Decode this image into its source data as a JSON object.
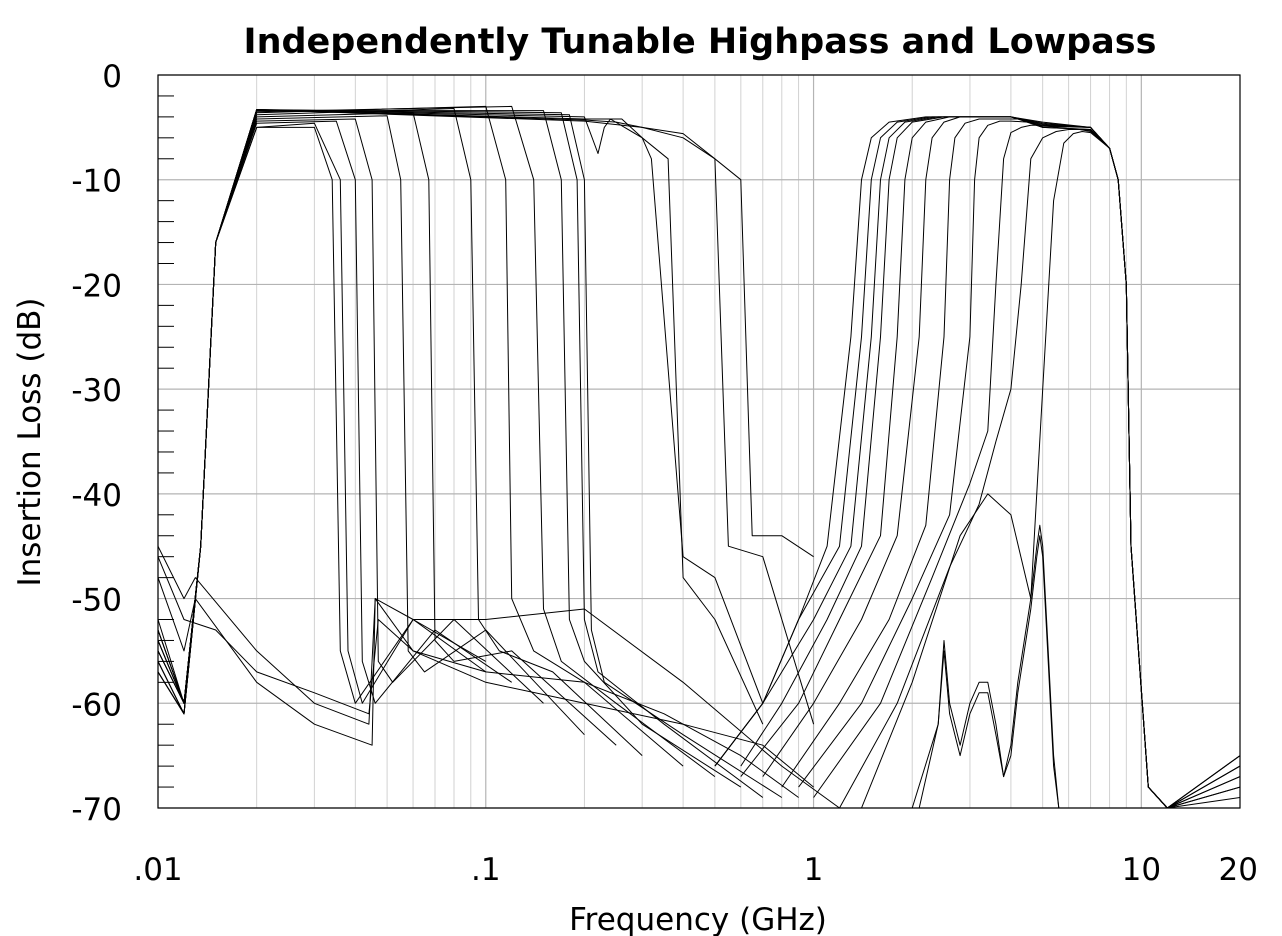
{
  "chart_data": {
    "type": "line",
    "title": "Independently Tunable Highpass and Lowpass",
    "xlabel": "Frequency (GHz)",
    "ylabel": "Insertion Loss (dB)",
    "xscale": "log",
    "xlim": [
      0.01,
      20
    ],
    "ylim": [
      -70,
      0
    ],
    "grid": true,
    "legend": "none",
    "x_ticks": [
      {
        "value": 0.01,
        "label": ".01"
      },
      {
        "value": 0.1,
        "label": ".1"
      },
      {
        "value": 1,
        "label": "1"
      },
      {
        "value": 10,
        "label": "10"
      },
      {
        "value": 20,
        "label": "20"
      }
    ],
    "y_ticks": [
      {
        "value": 0,
        "label": "0"
      },
      {
        "value": -10,
        "label": "-10"
      },
      {
        "value": -20,
        "label": "-20"
      },
      {
        "value": -30,
        "label": "-30"
      },
      {
        "value": -40,
        "label": "-40"
      },
      {
        "value": -50,
        "label": "-50"
      },
      {
        "value": -60,
        "label": "-60"
      },
      {
        "value": -70,
        "label": "-70"
      }
    ],
    "line_color": "#000000",
    "series": [
      {
        "x": [
          0.01,
          0.012,
          0.0135,
          0.015,
          0.02,
          0.03,
          0.034,
          0.036,
          0.04,
          0.06,
          0.1
        ],
        "values": [
          -57,
          -61,
          -45,
          -16,
          -5,
          -5,
          -10,
          -55,
          -60,
          -52,
          -56
        ]
      },
      {
        "x": [
          0.01,
          0.012,
          0.0135,
          0.015,
          0.02,
          0.03,
          0.036,
          0.038,
          0.042,
          0.06,
          0.1
        ],
        "values": [
          -57,
          -61,
          -45,
          -16,
          -5,
          -4.6,
          -10,
          -55,
          -60,
          -52,
          -57
        ]
      },
      {
        "x": [
          0.01,
          0.012,
          0.0135,
          0.015,
          0.02,
          0.035,
          0.04,
          0.042,
          0.046,
          0.07,
          0.12
        ],
        "values": [
          -57,
          -61,
          -45,
          -16,
          -4.6,
          -4.4,
          -10,
          -56,
          -60,
          -53,
          -58
        ]
      },
      {
        "x": [
          0.01,
          0.012,
          0.0135,
          0.015,
          0.02,
          0.04,
          0.045,
          0.047,
          0.052,
          0.08,
          0.15
        ],
        "values": [
          -56,
          -61,
          -45,
          -16,
          -4.4,
          -4.2,
          -10,
          -56,
          -58,
          -52,
          -60
        ]
      },
      {
        "x": [
          0.01,
          0.012,
          0.0135,
          0.015,
          0.02,
          0.05,
          0.055,
          0.058,
          0.065,
          0.1,
          0.2
        ],
        "values": [
          -56,
          -61,
          -45,
          -16,
          -4.2,
          -3.9,
          -10,
          -55,
          -57,
          -53,
          -63
        ]
      },
      {
        "x": [
          0.01,
          0.012,
          0.0135,
          0.015,
          0.02,
          0.06,
          0.067,
          0.07,
          0.08,
          0.12,
          0.25
        ],
        "values": [
          -56,
          -61,
          -45,
          -16,
          -4.0,
          -3.6,
          -10,
          -54,
          -56,
          -55,
          -64
        ]
      },
      {
        "x": [
          0.01,
          0.012,
          0.0135,
          0.015,
          0.02,
          0.08,
          0.09,
          0.095,
          0.11,
          0.16,
          0.3
        ],
        "values": [
          -55,
          -60,
          -45,
          -16,
          -3.8,
          -3.2,
          -10,
          -52,
          -55,
          -57,
          -65
        ]
      },
      {
        "x": [
          0.01,
          0.012,
          0.0135,
          0.015,
          0.02,
          0.1,
          0.115,
          0.12,
          0.14,
          0.2,
          0.4
        ],
        "values": [
          -55,
          -60,
          -45,
          -16,
          -3.6,
          -3.0,
          -10,
          -50,
          -55,
          -58,
          -66
        ]
      },
      {
        "x": [
          0.01,
          0.012,
          0.0135,
          0.015,
          0.02,
          0.12,
          0.14,
          0.15,
          0.17,
          0.25,
          0.5
        ],
        "values": [
          -55,
          -60,
          -45,
          -16,
          -3.5,
          -3.0,
          -10,
          -51,
          -56,
          -60,
          -67
        ]
      },
      {
        "x": [
          0.01,
          0.012,
          0.0135,
          0.015,
          0.02,
          0.15,
          0.17,
          0.18,
          0.2,
          0.3,
          0.6
        ],
        "values": [
          -54,
          -60,
          -45,
          -16,
          -3.4,
          -3.4,
          -10,
          -52,
          -56,
          -62,
          -68
        ]
      },
      {
        "x": [
          0.01,
          0.012,
          0.0135,
          0.015,
          0.02,
          0.17,
          0.19,
          0.2,
          0.22,
          0.35,
          0.7
        ],
        "values": [
          -54,
          -60,
          -45,
          -16,
          -3.3,
          -3.6,
          -10,
          -52,
          -57,
          -62,
          -69
        ]
      },
      {
        "x": [
          0.01,
          0.012,
          0.0135,
          0.015,
          0.02,
          0.18,
          0.2,
          0.21,
          0.23,
          0.4,
          0.8
        ],
        "values": [
          -54,
          -60,
          -45,
          -16,
          -3.3,
          -3.8,
          -10,
          -53,
          -58,
          -63,
          -69
        ]
      },
      {
        "x": [
          0.01,
          0.012,
          0.0135,
          0.015,
          0.02,
          0.2,
          0.22,
          0.23,
          0.24,
          0.3,
          0.32,
          0.4,
          0.5,
          0.7
        ],
        "values": [
          -53,
          -60,
          -45,
          -16,
          -3.3,
          -4.0,
          -7.5,
          -5,
          -4.2,
          -6,
          -8,
          -46,
          -48,
          -60
        ]
      },
      {
        "x": [
          0.01,
          0.012,
          0.0135,
          0.015,
          0.02,
          0.2,
          0.23,
          0.26,
          0.3,
          0.36,
          0.4,
          0.5,
          0.7
        ],
        "values": [
          -53,
          -60,
          -45,
          -16,
          -3.3,
          -4.2,
          -4.2,
          -4.2,
          -6,
          -8,
          -48,
          -52,
          -62
        ]
      },
      {
        "x": [
          0.01,
          0.012,
          0.0135,
          0.015,
          0.02,
          0.2,
          0.25,
          0.3,
          0.4,
          0.5,
          0.55,
          0.7,
          1.0
        ],
        "values": [
          -53,
          -60,
          -45,
          -16,
          -3.3,
          -4.3,
          -4.5,
          -5,
          -6,
          -8,
          -45,
          -46,
          -62
        ]
      },
      {
        "x": [
          0.01,
          0.012,
          0.0135,
          0.015,
          0.02,
          0.2,
          0.3,
          0.4,
          0.5,
          0.6,
          0.65,
          0.8,
          1.0
        ],
        "values": [
          -52,
          -60,
          -45,
          -16,
          -3.3,
          -4.4,
          -5,
          -5.6,
          -8,
          -10,
          -44,
          -44,
          -46
        ]
      },
      {
        "x": [
          0.5,
          0.7,
          0.9,
          1.1,
          1.3,
          1.4,
          1.5,
          1.7,
          2.2,
          3.0,
          4.0,
          5.0,
          7.0,
          8.0,
          8.5,
          9.0,
          9.3,
          10.5,
          12,
          20
        ],
        "values": [
          -66,
          -60,
          -52,
          -45,
          -25,
          -10,
          -6,
          -4.5,
          -4,
          -4,
          -4,
          -4.5,
          -5,
          -7,
          -10,
          -20,
          -45,
          -68,
          -70,
          -65
        ]
      },
      {
        "x": [
          0.5,
          0.7,
          0.9,
          1.2,
          1.4,
          1.5,
          1.6,
          1.8,
          2.3,
          3.0,
          4.0,
          5.0,
          7.0,
          8.0,
          8.5,
          9.0,
          9.3,
          10.5,
          12,
          20
        ],
        "values": [
          -66,
          -60,
          -52,
          -45,
          -25,
          -10,
          -6,
          -4.5,
          -4,
          -4,
          -4,
          -4.6,
          -5,
          -7,
          -10,
          -20,
          -45,
          -68,
          -70,
          -65
        ]
      },
      {
        "x": [
          0.5,
          0.7,
          1.0,
          1.3,
          1.5,
          1.6,
          1.7,
          1.9,
          2.4,
          3.0,
          4.0,
          5.0,
          7.0,
          8.0,
          8.5,
          9.0,
          9.3,
          10.5,
          12,
          20
        ],
        "values": [
          -66,
          -60,
          -52,
          -45,
          -25,
          -10,
          -6,
          -4.5,
          -4,
          -4,
          -4,
          -4.7,
          -5,
          -7,
          -10,
          -20,
          -45,
          -68,
          -70,
          -65
        ]
      },
      {
        "x": [
          0.6,
          0.8,
          1.1,
          1.4,
          1.6,
          1.7,
          1.8,
          2.0,
          2.5,
          3.0,
          4.0,
          5.0,
          7.0,
          8.0,
          8.5,
          9.0,
          9.3,
          10.5,
          12,
          20
        ],
        "values": [
          -66,
          -60,
          -52,
          -45,
          -25,
          -10,
          -6,
          -4.5,
          -4,
          -4,
          -4,
          -4.8,
          -5,
          -7,
          -10,
          -20,
          -45,
          -68,
          -70,
          -66
        ]
      },
      {
        "x": [
          0.6,
          0.9,
          1.2,
          1.6,
          1.8,
          1.9,
          2.0,
          2.2,
          2.6,
          3.0,
          4.0,
          5.0,
          7.0,
          8.0,
          8.5,
          9.0,
          9.3,
          10.5,
          12,
          20
        ],
        "values": [
          -67,
          -60,
          -52,
          -44,
          -25,
          -10,
          -6,
          -4.5,
          -4,
          -4,
          -4,
          -4.8,
          -5,
          -7,
          -10,
          -20,
          -45,
          -68,
          -70,
          -66
        ]
      },
      {
        "x": [
          0.7,
          1.0,
          1.4,
          1.8,
          2.1,
          2.2,
          2.3,
          2.5,
          2.8,
          3.2,
          4.0,
          5.0,
          7.0,
          8.0,
          8.5,
          9.0,
          9.3,
          10.5,
          12,
          20
        ],
        "values": [
          -67,
          -60,
          -52,
          -44,
          -25,
          -10,
          -6,
          -4.5,
          -4,
          -4,
          -4,
          -4.9,
          -5,
          -7,
          -10,
          -20,
          -45,
          -68,
          -70,
          -66
        ]
      },
      {
        "x": [
          0.8,
          1.2,
          1.7,
          2.2,
          2.5,
          2.6,
          2.7,
          2.9,
          3.2,
          3.6,
          4.2,
          5.0,
          7.0,
          8.0,
          8.5,
          9.0,
          9.3,
          10.5,
          12,
          20
        ],
        "values": [
          -68,
          -60,
          -52,
          -43,
          -25,
          -10,
          -6,
          -4.6,
          -4.2,
          -4.2,
          -4.2,
          -5,
          -5.2,
          -7,
          -10,
          -20,
          -45,
          -68,
          -70,
          -67
        ]
      },
      {
        "x": [
          0.9,
          1.4,
          2.0,
          2.6,
          3.0,
          3.1,
          3.2,
          3.4,
          3.7,
          4.0,
          4.5,
          5.0,
          7.0,
          8.0,
          8.5,
          9.0,
          9.3,
          10.5,
          12,
          20
        ],
        "values": [
          -68,
          -60,
          -50,
          -42,
          -25,
          -10,
          -6,
          -4.8,
          -4.4,
          -4.4,
          -4.5,
          -5,
          -5.2,
          -7,
          -10,
          -20,
          -45,
          -68,
          -70,
          -67
        ]
      },
      {
        "x": [
          1.0,
          1.6,
          2.3,
          3.0,
          3.4,
          3.6,
          3.8,
          4.0,
          4.3,
          4.6,
          5.0,
          5.5,
          7.0,
          8.0,
          8.5,
          9.0,
          9.3,
          10.5,
          12,
          20
        ],
        "values": [
          -69,
          -60,
          -48,
          -39,
          -34,
          -20,
          -8,
          -5.5,
          -5,
          -4.8,
          -4.8,
          -5,
          -5.3,
          -7,
          -10,
          -20,
          -45,
          -68,
          -70,
          -68
        ]
      },
      {
        "x": [
          1.2,
          1.8,
          2.6,
          3.2,
          3.6,
          4.0,
          4.3,
          4.6,
          5.0,
          5.5,
          6.0,
          6.5,
          7.0,
          8.0,
          8.5,
          9.0,
          9.3,
          10.5,
          12,
          20
        ],
        "values": [
          -70,
          -60,
          -47,
          -41,
          -35,
          -30,
          -20,
          -8,
          -6,
          -5.4,
          -5.2,
          -5.2,
          -5.4,
          -7,
          -10,
          -20,
          -45,
          -68,
          -70,
          -68
        ]
      },
      {
        "x": [
          1.4,
          2.0,
          2.8,
          3.4,
          4.0,
          4.6,
          5.0,
          5.4,
          5.8,
          6.2,
          6.6,
          7.0,
          8.0,
          8.5,
          9.0,
          9.3,
          10.5,
          12,
          20
        ],
        "values": [
          -70,
          -58,
          -44,
          -40,
          -42,
          -50,
          -30,
          -12,
          -6.5,
          -5.6,
          -5.4,
          -5.5,
          -7,
          -10,
          -20,
          -45,
          -68,
          -70,
          -69
        ]
      },
      {
        "x": [
          2.0,
          2.4,
          2.5,
          2.6,
          2.8,
          3.0,
          3.2,
          3.4,
          3.6,
          3.8,
          4.0,
          4.2,
          4.6,
          4.8,
          4.9,
          5.0,
          5.2,
          5.4,
          5.6
        ],
        "values": [
          -70,
          -62,
          -54,
          -60,
          -64,
          -60,
          -58,
          -58,
          -62,
          -67,
          -64,
          -58,
          -50,
          -45,
          -43,
          -45,
          -55,
          -65,
          -70
        ]
      },
      {
        "x": [
          2.1,
          2.4,
          2.5,
          2.6,
          2.8,
          3.0,
          3.2,
          3.4,
          3.6,
          3.8,
          4.0,
          4.2,
          4.6,
          4.8,
          4.9,
          5.0,
          5.2,
          5.4,
          5.6
        ],
        "values": [
          -70,
          -62,
          -55,
          -61,
          -65,
          -61,
          -59,
          -59,
          -63,
          -67,
          -65,
          -59,
          -51,
          -46,
          -44,
          -46,
          -56,
          -66,
          -70
        ]
      },
      {
        "x": [
          0.01,
          0.012,
          0.013,
          0.02,
          0.03,
          0.045,
          0.046,
          0.06,
          0.1,
          0.2,
          0.4,
          0.8,
          1.2
        ],
        "values": [
          -48,
          -55,
          -50,
          -58,
          -62,
          -64,
          -50,
          -52,
          -52,
          -51,
          -58,
          -66,
          -70
        ]
      },
      {
        "x": [
          0.01,
          0.012,
          0.013,
          0.02,
          0.03,
          0.044,
          0.046,
          0.06,
          0.1,
          0.2,
          0.4,
          0.7,
          1.0
        ],
        "values": [
          -45,
          -50,
          -48,
          -55,
          -60,
          -62,
          -50,
          -55,
          -58,
          -60,
          -62,
          -64,
          -68
        ]
      },
      {
        "x": [
          0.01,
          0.012,
          0.015,
          0.02,
          0.03,
          0.044,
          0.047,
          0.06,
          0.1,
          0.2,
          0.35,
          0.6,
          0.9
        ],
        "values": [
          -46,
          -52,
          -53,
          -57,
          -59,
          -61,
          -52,
          -55,
          -57,
          -58,
          -61,
          -65,
          -69
        ]
      }
    ]
  }
}
